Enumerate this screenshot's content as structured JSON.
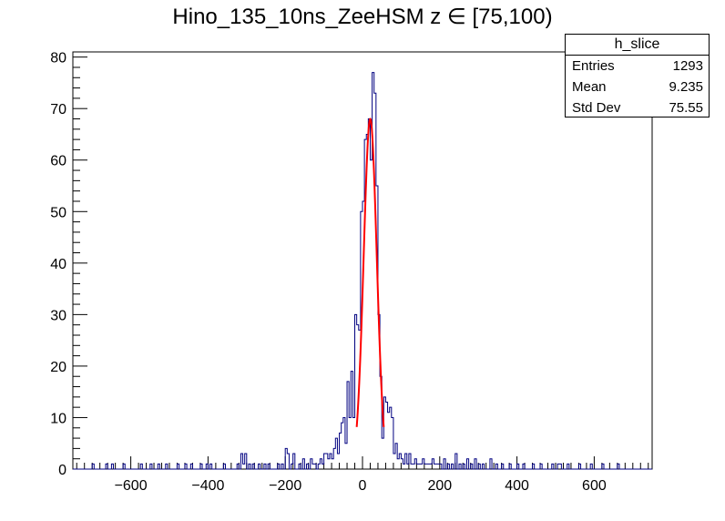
{
  "title": "Hino_135_10ns_ZeeHSM z  ∈ [75,100)",
  "stats": {
    "name": "h_slice",
    "rows": [
      {
        "label": "Entries",
        "value": "1293"
      },
      {
        "label": "Mean",
        "value": "9.235"
      },
      {
        "label": "Std Dev",
        "value": "75.55"
      }
    ]
  },
  "chart_data": {
    "type": "histogram",
    "xlim": [
      -750,
      750
    ],
    "ylim": [
      0,
      81
    ],
    "xticks": [
      -600,
      -400,
      -200,
      0,
      200,
      400,
      600
    ],
    "yticks": [
      0,
      10,
      20,
      30,
      40,
      50,
      60,
      70,
      80
    ],
    "grid": false,
    "histogram_color": "#000080",
    "fit_color": "#ff0000",
    "bin_width": 5,
    "bins_x": [
      -700,
      -665,
      -650,
      -620,
      -575,
      -550,
      -530,
      -510,
      -480,
      -460,
      -445,
      -420,
      -405,
      -395,
      -360,
      -325,
      -315,
      -310,
      -305,
      -295,
      -285,
      -270,
      -255,
      -245,
      -220,
      -210,
      -200,
      -195,
      -185,
      -180,
      -165,
      -155,
      -145,
      -135,
      -130,
      -125,
      -115,
      -110,
      -105,
      -100,
      -95,
      -90,
      -85,
      -80,
      -75,
      -70,
      -65,
      -60,
      -55,
      -50,
      -45,
      -40,
      -35,
      -30,
      -25,
      -20,
      -15,
      -10,
      -5,
      0,
      5,
      10,
      15,
      20,
      25,
      30,
      35,
      40,
      45,
      50,
      55,
      60,
      65,
      70,
      75,
      80,
      85,
      90,
      95,
      100,
      105,
      110,
      115,
      120,
      125,
      130,
      135,
      140,
      145,
      150,
      155,
      160,
      165,
      170,
      175,
      180,
      185,
      190,
      195,
      200,
      210,
      220,
      230,
      240,
      250,
      260,
      270,
      280,
      290,
      300,
      310,
      330,
      345,
      360,
      380,
      400,
      415,
      440,
      460,
      490,
      505,
      510,
      530,
      560,
      590,
      620,
      660,
      700
    ],
    "bins_y": [
      1,
      1,
      1,
      1,
      1,
      1,
      1,
      1,
      1,
      1,
      1,
      1,
      1,
      1,
      1,
      1,
      3,
      1,
      3,
      1,
      1,
      1,
      1,
      1,
      1,
      1,
      4,
      3,
      1,
      3,
      1,
      2,
      1,
      2,
      1,
      1,
      1,
      2,
      1,
      3,
      3,
      2,
      3,
      2,
      4,
      6,
      3,
      7,
      9,
      10,
      5,
      17,
      10,
      19,
      10,
      30,
      28,
      27,
      50,
      52,
      64,
      65,
      68,
      60,
      77,
      73,
      55,
      30,
      18,
      6,
      14,
      13,
      11,
      12,
      10,
      3,
      5,
      2,
      3,
      2,
      1,
      3,
      1,
      3,
      1,
      1,
      2,
      1,
      1,
      1,
      2,
      1,
      1,
      1,
      1,
      2,
      1,
      1,
      1,
      1,
      2,
      1,
      1,
      3,
      1,
      1,
      2,
      1,
      2,
      1,
      1,
      2,
      1,
      1,
      1,
      1,
      1,
      1,
      1,
      1,
      1,
      1,
      1,
      1,
      1,
      1,
      1
    ],
    "fit": {
      "mean": 20,
      "sigma": 17,
      "amplitude": 68,
      "range": [
        -15,
        55
      ]
    }
  }
}
